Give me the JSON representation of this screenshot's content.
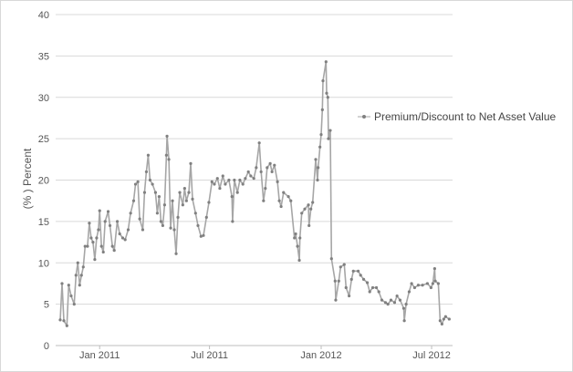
{
  "chart_data": {
    "type": "line",
    "title": "",
    "xlabel": "",
    "ylabel": "(% ) Percent",
    "ylim": [
      0,
      40
    ],
    "yticks": [
      0,
      5,
      10,
      15,
      20,
      25,
      30,
      35,
      40
    ],
    "xlim": [
      "2010-10-25",
      "2012-08-03"
    ],
    "xticks": [
      {
        "date": "2011-01-01",
        "label": "Jan 2011"
      },
      {
        "date": "2011-07-01",
        "label": "Jul 2011"
      },
      {
        "date": "2012-01-01",
        "label": "Jan 2012"
      },
      {
        "date": "2012-07-01",
        "label": "Jul 2012"
      }
    ],
    "grid": true,
    "legend_position": "right",
    "colors": {
      "line": "#a6a6a6",
      "marker": "#808080",
      "grid": "#d9d9d9",
      "text": "#555555"
    },
    "series": [
      {
        "name": "Premium/Discount to Net Asset Value",
        "points": [
          [
            "2010-10-28",
            3.1
          ],
          [
            "2010-10-31",
            7.5
          ],
          [
            "2010-11-03",
            3.0
          ],
          [
            "2010-11-08",
            2.4
          ],
          [
            "2010-11-11",
            7.3
          ],
          [
            "2010-11-15",
            6.0
          ],
          [
            "2010-11-20",
            5.0
          ],
          [
            "2010-11-23",
            8.5
          ],
          [
            "2010-11-26",
            10.0
          ],
          [
            "2010-11-29",
            7.3
          ],
          [
            "2010-12-02",
            8.5
          ],
          [
            "2010-12-05",
            9.5
          ],
          [
            "2010-12-08",
            12.0
          ],
          [
            "2010-12-12",
            12.0
          ],
          [
            "2010-12-15",
            14.8
          ],
          [
            "2010-12-18",
            13.0
          ],
          [
            "2010-12-21",
            12.5
          ],
          [
            "2010-12-24",
            10.4
          ],
          [
            "2010-12-27",
            13.0
          ],
          [
            "2010-12-30",
            14.0
          ],
          [
            "2011-01-01",
            16.3
          ],
          [
            "2011-01-04",
            12.0
          ],
          [
            "2011-01-07",
            11.3
          ],
          [
            "2011-01-10",
            15.0
          ],
          [
            "2011-01-15",
            16.2
          ],
          [
            "2011-01-18",
            14.5
          ],
          [
            "2011-01-22",
            12.0
          ],
          [
            "2011-01-25",
            11.5
          ],
          [
            "2011-01-30",
            15.0
          ],
          [
            "2011-02-03",
            13.5
          ],
          [
            "2011-02-08",
            13.0
          ],
          [
            "2011-02-12",
            12.8
          ],
          [
            "2011-02-17",
            14.0
          ],
          [
            "2011-02-21",
            16.0
          ],
          [
            "2011-02-26",
            17.5
          ],
          [
            "2011-03-01",
            19.5
          ],
          [
            "2011-03-05",
            19.8
          ],
          [
            "2011-03-08",
            15.3
          ],
          [
            "2011-03-13",
            14.0
          ],
          [
            "2011-03-16",
            18.5
          ],
          [
            "2011-03-19",
            21.0
          ],
          [
            "2011-03-22",
            23.0
          ],
          [
            "2011-03-25",
            20.0
          ],
          [
            "2011-03-29",
            19.5
          ],
          [
            "2011-04-03",
            18.5
          ],
          [
            "2011-04-06",
            16.0
          ],
          [
            "2011-04-09",
            18.0
          ],
          [
            "2011-04-12",
            15.0
          ],
          [
            "2011-04-15",
            14.5
          ],
          [
            "2011-04-18",
            17.0
          ],
          [
            "2011-04-21",
            23.0
          ],
          [
            "2011-04-22",
            25.3
          ],
          [
            "2011-04-25",
            22.5
          ],
          [
            "2011-04-28",
            14.2
          ],
          [
            "2011-05-01",
            17.5
          ],
          [
            "2011-05-04",
            14.0
          ],
          [
            "2011-05-07",
            11.1
          ],
          [
            "2011-05-10",
            15.5
          ],
          [
            "2011-05-13",
            18.5
          ],
          [
            "2011-05-18",
            17.0
          ],
          [
            "2011-05-21",
            19.0
          ],
          [
            "2011-05-24",
            17.5
          ],
          [
            "2011-05-28",
            18.5
          ],
          [
            "2011-05-31",
            22.0
          ],
          [
            "2011-06-03",
            17.7
          ],
          [
            "2011-06-08",
            16.0
          ],
          [
            "2011-06-12",
            14.5
          ],
          [
            "2011-06-17",
            13.2
          ],
          [
            "2011-06-21",
            13.3
          ],
          [
            "2011-06-26",
            15.5
          ],
          [
            "2011-06-30",
            17.3
          ],
          [
            "2011-07-05",
            19.8
          ],
          [
            "2011-07-09",
            19.5
          ],
          [
            "2011-07-14",
            20.2
          ],
          [
            "2011-07-18",
            19.0
          ],
          [
            "2011-07-23",
            20.5
          ],
          [
            "2011-07-27",
            19.5
          ],
          [
            "2011-08-02",
            20.0
          ],
          [
            "2011-08-07",
            18.0
          ],
          [
            "2011-08-08",
            15.0
          ],
          [
            "2011-08-11",
            20.0
          ],
          [
            "2011-08-16",
            18.5
          ],
          [
            "2011-08-20",
            20.0
          ],
          [
            "2011-08-25",
            19.5
          ],
          [
            "2011-08-29",
            20.2
          ],
          [
            "2011-09-03",
            21.0
          ],
          [
            "2011-09-07",
            20.5
          ],
          [
            "2011-09-12",
            20.2
          ],
          [
            "2011-09-16",
            21.5
          ],
          [
            "2011-09-21",
            24.5
          ],
          [
            "2011-09-24",
            21.0
          ],
          [
            "2011-09-28",
            17.5
          ],
          [
            "2011-10-01",
            19.0
          ],
          [
            "2011-10-04",
            21.5
          ],
          [
            "2011-10-09",
            22.0
          ],
          [
            "2011-10-12",
            21.0
          ],
          [
            "2011-10-16",
            21.8
          ],
          [
            "2011-10-21",
            19.8
          ],
          [
            "2011-10-24",
            17.5
          ],
          [
            "2011-10-27",
            16.8
          ],
          [
            "2011-10-31",
            18.5
          ],
          [
            "2011-11-08",
            18.0
          ],
          [
            "2011-11-12",
            17.5
          ],
          [
            "2011-11-18",
            13.0
          ],
          [
            "2011-11-20",
            13.5
          ],
          [
            "2011-11-23",
            12.0
          ],
          [
            "2011-11-26",
            10.3
          ],
          [
            "2011-11-27",
            13.0
          ],
          [
            "2011-11-30",
            16.0
          ],
          [
            "2011-12-05",
            16.5
          ],
          [
            "2011-12-11",
            17.0
          ],
          [
            "2011-12-12",
            14.5
          ],
          [
            "2011-12-15",
            16.5
          ],
          [
            "2011-12-18",
            17.3
          ],
          [
            "2011-12-23",
            22.5
          ],
          [
            "2011-12-26",
            20.0
          ],
          [
            "2011-12-27",
            21.5
          ],
          [
            "2011-12-30",
            24.0
          ],
          [
            "2012-01-01",
            25.5
          ],
          [
            "2012-01-03",
            28.5
          ],
          [
            "2012-01-04",
            32.0
          ],
          [
            "2012-01-09",
            34.3
          ],
          [
            "2012-01-10",
            30.5
          ],
          [
            "2012-01-12",
            30.0
          ],
          [
            "2012-01-13",
            25.0
          ],
          [
            "2012-01-16",
            26.0
          ],
          [
            "2012-01-18",
            10.5
          ],
          [
            "2012-01-24",
            7.8
          ],
          [
            "2012-01-25",
            5.5
          ],
          [
            "2012-01-30",
            7.8
          ],
          [
            "2012-02-02",
            9.5
          ],
          [
            "2012-02-08",
            9.8
          ],
          [
            "2012-02-11",
            7.0
          ],
          [
            "2012-02-16",
            6.0
          ],
          [
            "2012-02-20",
            8.0
          ],
          [
            "2012-02-23",
            9.0
          ],
          [
            "2012-03-02",
            9.0
          ],
          [
            "2012-03-06",
            8.5
          ],
          [
            "2012-03-11",
            8.0
          ],
          [
            "2012-03-17",
            7.6
          ],
          [
            "2012-03-21",
            6.5
          ],
          [
            "2012-03-26",
            7.0
          ],
          [
            "2012-04-01",
            7.0
          ],
          [
            "2012-04-05",
            6.5
          ],
          [
            "2012-04-10",
            5.5
          ],
          [
            "2012-04-16",
            5.2
          ],
          [
            "2012-04-20",
            5.0
          ],
          [
            "2012-04-25",
            5.5
          ],
          [
            "2012-05-01",
            5.2
          ],
          [
            "2012-05-05",
            6.0
          ],
          [
            "2012-05-10",
            5.5
          ],
          [
            "2012-05-16",
            4.5
          ],
          [
            "2012-05-17",
            3.0
          ],
          [
            "2012-05-20",
            5.0
          ],
          [
            "2012-05-25",
            6.5
          ],
          [
            "2012-05-29",
            7.5
          ],
          [
            "2012-06-03",
            7.0
          ],
          [
            "2012-06-09",
            7.3
          ],
          [
            "2012-06-16",
            7.3
          ],
          [
            "2012-06-24",
            7.5
          ],
          [
            "2012-06-30",
            7.0
          ],
          [
            "2012-07-03",
            7.5
          ],
          [
            "2012-07-06",
            9.3
          ],
          [
            "2012-07-07",
            7.8
          ],
          [
            "2012-07-12",
            7.5
          ],
          [
            "2012-07-15",
            3.0
          ],
          [
            "2012-07-18",
            2.6
          ],
          [
            "2012-07-21",
            3.2
          ],
          [
            "2012-07-24",
            3.5
          ],
          [
            "2012-07-30",
            3.2
          ]
        ]
      }
    ]
  }
}
